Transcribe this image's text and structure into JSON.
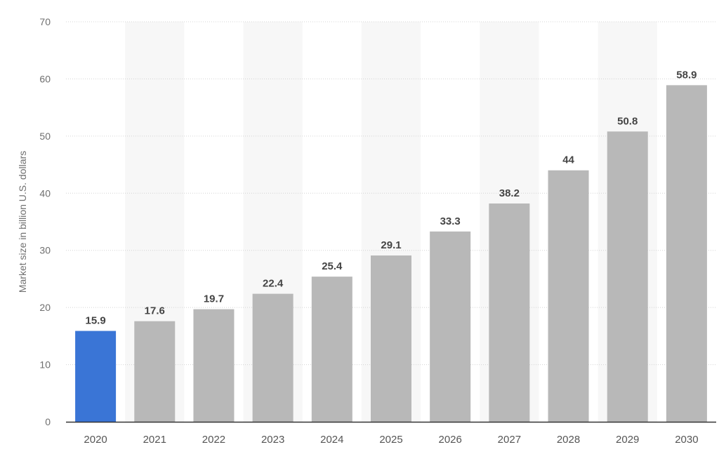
{
  "chart_data": {
    "type": "bar",
    "title": "",
    "xlabel": "",
    "ylabel": "Market size in billion U.S. dollars",
    "categories": [
      "2020",
      "2021",
      "2022",
      "2023",
      "2024",
      "2025",
      "2026",
      "2027",
      "2028",
      "2029",
      "2030"
    ],
    "values": [
      15.9,
      17.6,
      19.7,
      22.4,
      25.4,
      29.1,
      33.3,
      38.2,
      44,
      50.8,
      58.9
    ],
    "value_labels": [
      "15.9",
      "17.6",
      "19.7",
      "22.4",
      "25.4",
      "29.1",
      "33.3",
      "38.2",
      "44",
      "50.8",
      "58.9"
    ],
    "ylim": [
      0,
      70
    ],
    "yticks": [
      0,
      10,
      20,
      30,
      40,
      50,
      60,
      70
    ],
    "grid": true,
    "legend": "none",
    "colors": {
      "highlight": "#3a75d6",
      "bar": "#b8b8b8",
      "grid": "#d4d4d4",
      "axis": "#333333"
    },
    "highlight_index": 0
  }
}
